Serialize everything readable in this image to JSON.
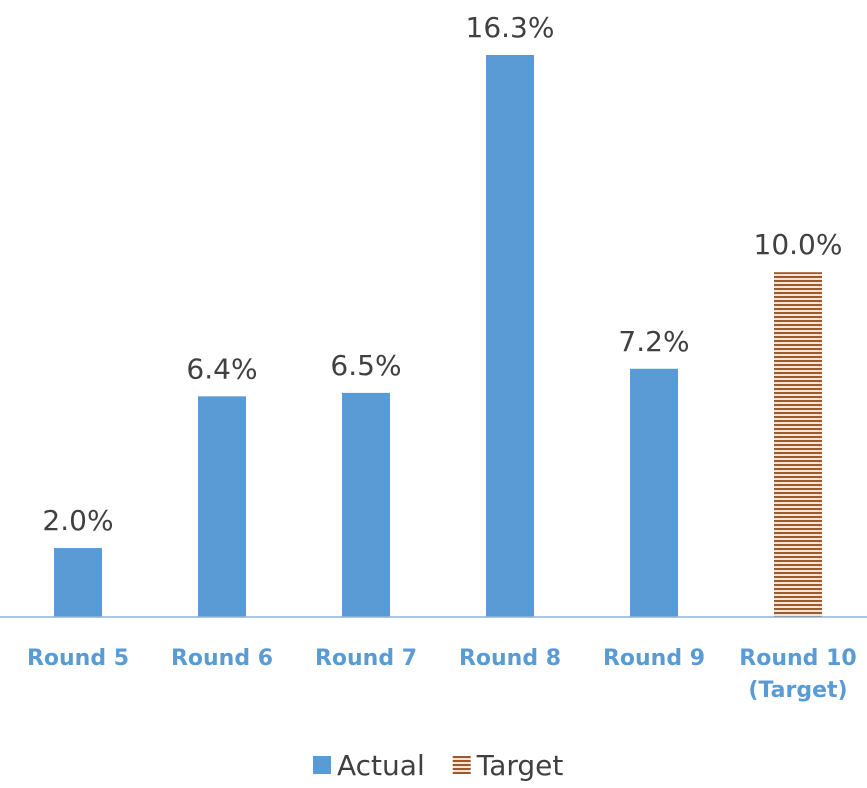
{
  "chart_data": {
    "type": "bar",
    "categories": [
      "Round 5",
      "Round 6",
      "Round 7",
      "Round 8",
      "Round 9",
      "Round 10 (Target)"
    ],
    "series": [
      {
        "name": "Actual",
        "color": "#5b9bd5",
        "values": [
          2.0,
          6.4,
          6.5,
          16.3,
          7.2,
          null
        ],
        "value_labels": [
          "2.0%",
          "6.4%",
          "6.5%",
          "16.3%",
          "7.2%",
          null
        ]
      },
      {
        "name": "Target",
        "color": "#9c5a2c",
        "pattern": "horizontal-stripes",
        "values": [
          null,
          null,
          null,
          null,
          null,
          10.0
        ],
        "value_labels": [
          null,
          null,
          null,
          null,
          null,
          "10.0%"
        ]
      }
    ],
    "legend": "bottom"
  }
}
